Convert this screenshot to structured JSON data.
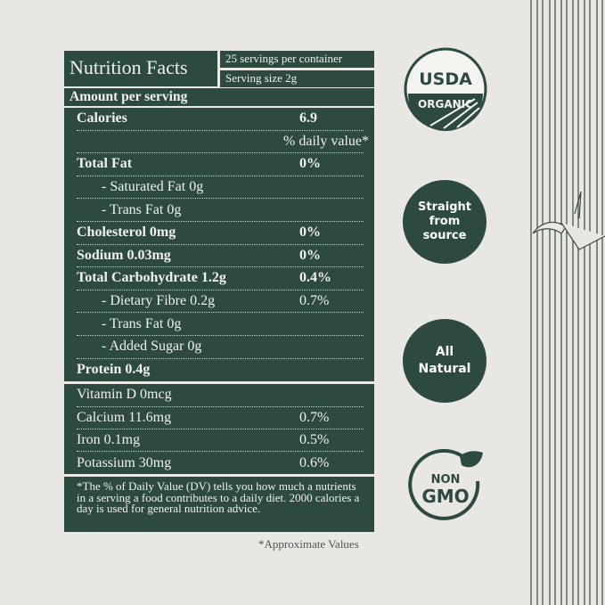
{
  "header": {
    "title": "Nutrition Facts",
    "servings": "25 servings per container",
    "serving_size": "Serving size 2g",
    "amount_per_serving": "Amount per serving"
  },
  "main_rows": [
    {
      "name": "Calories",
      "value": "6.9",
      "style": "bold"
    },
    {
      "name": "",
      "value": "% daily value*",
      "style": "dv"
    },
    {
      "name": "Total Fat",
      "value": "0%",
      "style": "bold"
    },
    {
      "name": "- Saturated Fat 0g",
      "value": "",
      "style": "sub"
    },
    {
      "name": "- Trans Fat 0g",
      "value": "",
      "style": "sub"
    },
    {
      "name": "Cholesterol 0mg",
      "value": "0%",
      "style": "bold"
    },
    {
      "name": "Sodium 0.03mg",
      "value": "0%",
      "style": "bold"
    },
    {
      "name": "Total Carbohydrate 1.2g",
      "value": "0.4%",
      "style": "bold"
    },
    {
      "name": "- Dietary Fibre 0.2g",
      "value": "0.7%",
      "style": "sub"
    },
    {
      "name": "- Trans Fat 0g",
      "value": "",
      "style": "sub"
    },
    {
      "name": "- Added Sugar 0g",
      "value": "",
      "style": "sub"
    },
    {
      "name": "Protein 0.4g",
      "value": "",
      "style": "bold"
    }
  ],
  "vitamin_rows": [
    {
      "name": "Vitamin D 0mcg",
      "value": ""
    },
    {
      "name": "Calcium 11.6mg",
      "value": "0.7%"
    },
    {
      "name": "Iron 0.1mg",
      "value": "0.5%"
    },
    {
      "name": "Potassium 30mg",
      "value": "0.6%"
    }
  ],
  "footnote": "*The % of Daily Value (DV) tells you how much a nutrients in a serving a food contributes to a daily diet. 2000 calories a day is used for general nutrition advice.",
  "approximate": "*Approximate Values",
  "badges": {
    "usda_top": "USDA",
    "usda_bottom": "ORGANIC",
    "source": [
      "Straight",
      "from",
      "source"
    ],
    "natural": [
      "All",
      "Natural"
    ],
    "gmo_top": "NON",
    "gmo_bottom": "GMO"
  },
  "colors": {
    "panel": "#2c4a40",
    "background": "#e9e7e2"
  }
}
